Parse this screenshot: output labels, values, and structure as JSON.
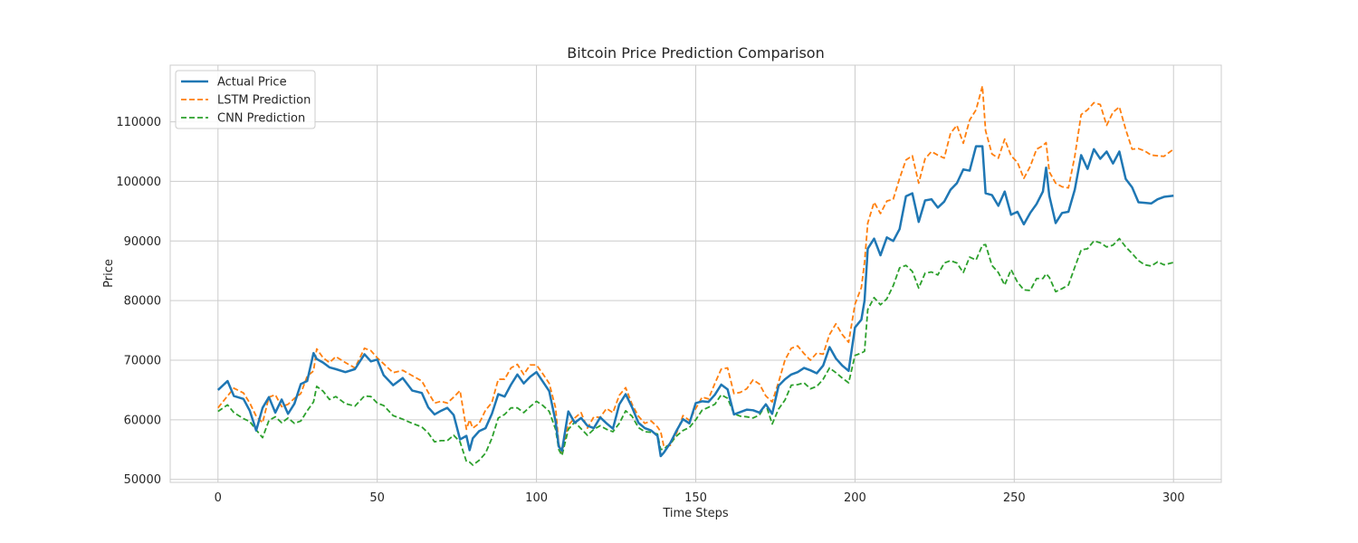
{
  "chart_data": {
    "type": "line",
    "title": "Bitcoin Price Prediction Comparison",
    "xlabel": "Time Steps",
    "ylabel": "Price",
    "xlim": [
      -15,
      315
    ],
    "ylim": [
      49500,
      119500
    ],
    "xticks": [
      0,
      50,
      100,
      150,
      200,
      250,
      300
    ],
    "yticks": [
      50000,
      60000,
      70000,
      80000,
      90000,
      100000,
      110000
    ],
    "grid": true,
    "legend_position": "top-left",
    "series": [
      {
        "name": "Actual Price",
        "color": "#1f77b4",
        "style": "solid",
        "x": [
          0,
          3,
          5,
          8,
          10,
          12,
          14,
          16,
          18,
          20,
          22,
          24,
          26,
          28,
          30,
          31,
          33,
          35,
          37,
          40,
          43,
          46,
          48,
          50,
          52,
          55,
          58,
          61,
          64,
          66,
          68,
          70,
          72,
          74,
          76,
          78,
          79,
          80,
          82,
          84,
          86,
          88,
          90,
          92,
          94,
          96,
          98,
          100,
          102,
          104,
          106,
          107,
          108,
          110,
          112,
          114,
          116,
          118,
          120,
          122,
          124,
          126,
          128,
          130,
          132,
          134,
          136,
          138,
          139,
          140,
          142,
          144,
          146,
          148,
          150,
          152,
          154,
          156,
          158,
          160,
          162,
          164,
          166,
          168,
          170,
          172,
          174,
          176,
          178,
          180,
          182,
          184,
          186,
          188,
          190,
          192,
          194,
          196,
          198,
          200,
          202,
          203,
          204,
          206,
          208,
          210,
          212,
          214,
          216,
          218,
          220,
          222,
          224,
          226,
          228,
          230,
          232,
          234,
          236,
          238,
          240,
          241,
          243,
          245,
          247,
          249,
          251,
          253,
          255,
          257,
          259,
          260,
          261,
          263,
          265,
          267,
          269,
          271,
          273,
          275,
          277,
          279,
          281,
          283,
          285,
          287,
          289,
          291,
          293,
          295,
          297,
          300
        ],
        "y": [
          65000,
          66500,
          64000,
          63500,
          61500,
          58200,
          62000,
          63800,
          61200,
          63400,
          61000,
          62700,
          66000,
          66500,
          71200,
          70200,
          69600,
          68800,
          68500,
          68000,
          68500,
          71000,
          69800,
          70100,
          67500,
          65800,
          67000,
          64900,
          64500,
          62100,
          60900,
          61500,
          62000,
          60800,
          56700,
          57300,
          54900,
          56900,
          58100,
          58600,
          61000,
          64300,
          63900,
          65900,
          67600,
          66100,
          67200,
          68000,
          66400,
          64800,
          59700,
          55500,
          54800,
          61400,
          59500,
          60300,
          59000,
          58600,
          60400,
          59400,
          58500,
          62600,
          64300,
          62100,
          59500,
          58600,
          58200,
          57300,
          53900,
          54500,
          56100,
          58200,
          60100,
          59400,
          62800,
          63100,
          63000,
          64200,
          65900,
          65100,
          60900,
          61300,
          61700,
          61600,
          61200,
          62600,
          61000,
          65700,
          66800,
          67600,
          68000,
          68700,
          68300,
          67800,
          69100,
          72200,
          70300,
          69100,
          68200,
          75500,
          76800,
          80000,
          88700,
          90400,
          87600,
          90600,
          90000,
          92000,
          97500,
          98000,
          93200,
          96800,
          97000,
          95600,
          96600,
          98600,
          99700,
          102000,
          101800,
          105900,
          105900,
          98000,
          97700,
          95900,
          98300,
          94400,
          94900,
          92800,
          94700,
          96200,
          98300,
          102300,
          97600,
          93000,
          94700,
          94900,
          98600,
          104400,
          102100,
          105400,
          103800,
          105000,
          103000,
          105000,
          100400,
          99000,
          96500,
          96400,
          96300,
          97000,
          97400,
          97600
        ]
      },
      {
        "name": "LSTM Prediction",
        "color": "#ff7f0e",
        "style": "dashed",
        "x": [
          0,
          3,
          5,
          8,
          10,
          12,
          14,
          16,
          18,
          20,
          22,
          24,
          26,
          28,
          30,
          31,
          33,
          35,
          37,
          40,
          43,
          46,
          48,
          50,
          52,
          55,
          58,
          61,
          64,
          66,
          68,
          70,
          72,
          74,
          76,
          78,
          79,
          80,
          82,
          84,
          86,
          88,
          90,
          92,
          94,
          96,
          98,
          100,
          102,
          104,
          106,
          107,
          108,
          110,
          112,
          114,
          116,
          118,
          120,
          122,
          124,
          126,
          128,
          130,
          132,
          134,
          136,
          138,
          139,
          140,
          142,
          144,
          146,
          148,
          150,
          152,
          154,
          156,
          158,
          160,
          162,
          164,
          166,
          168,
          170,
          172,
          174,
          176,
          178,
          180,
          182,
          184,
          186,
          188,
          190,
          192,
          194,
          196,
          198,
          200,
          202,
          203,
          204,
          206,
          208,
          210,
          212,
          214,
          216,
          218,
          220,
          222,
          224,
          226,
          228,
          230,
          232,
          234,
          236,
          238,
          240,
          241,
          243,
          245,
          247,
          249,
          251,
          253,
          255,
          257,
          259,
          260,
          261,
          263,
          265,
          267,
          269,
          271,
          273,
          275,
          277,
          279,
          281,
          283,
          285,
          287,
          289,
          291,
          293,
          295,
          297,
          300
        ],
        "y": [
          62000,
          64000,
          65300,
          64500,
          62800,
          60600,
          59500,
          63800,
          64200,
          62200,
          62600,
          63600,
          64400,
          67300,
          68200,
          71900,
          70400,
          69600,
          70600,
          69600,
          68700,
          72000,
          71600,
          70400,
          69400,
          67900,
          68300,
          67400,
          66500,
          64600,
          62800,
          63100,
          62800,
          63800,
          64900,
          58400,
          60000,
          58600,
          59400,
          61600,
          62900,
          66800,
          66800,
          68700,
          69300,
          67600,
          69200,
          69200,
          67700,
          66100,
          62000,
          55900,
          54400,
          59100,
          60300,
          61200,
          58600,
          60500,
          60400,
          61900,
          61200,
          64100,
          65400,
          62600,
          60600,
          59400,
          59800,
          58800,
          58000,
          55500,
          55700,
          57800,
          60700,
          59900,
          61900,
          63800,
          63500,
          66100,
          68500,
          68700,
          64400,
          64600,
          65200,
          66700,
          66000,
          64000,
          63000,
          66300,
          70000,
          72000,
          72400,
          71100,
          70000,
          71200,
          71000,
          74300,
          76100,
          74300,
          73000,
          79400,
          82200,
          86400,
          93000,
          96500,
          94600,
          96700,
          97000,
          100500,
          103600,
          104300,
          99700,
          103800,
          105000,
          104400,
          103900,
          108100,
          109400,
          106400,
          110300,
          112000,
          116000,
          108500,
          104600,
          103900,
          107100,
          104300,
          103200,
          100500,
          102500,
          105400,
          106000,
          106500,
          101600,
          99700,
          99100,
          98900,
          104200,
          111200,
          112000,
          113200,
          112900,
          109400,
          111600,
          112500,
          108700,
          105400,
          105500,
          105100,
          104400,
          104300,
          104200,
          105400
        ]
      },
      {
        "name": "CNN Prediction",
        "color": "#2ca02c",
        "style": "dashed",
        "x": [
          0,
          3,
          5,
          8,
          10,
          12,
          14,
          16,
          18,
          20,
          22,
          24,
          26,
          28,
          30,
          31,
          33,
          35,
          37,
          40,
          43,
          46,
          48,
          50,
          52,
          55,
          58,
          61,
          64,
          66,
          68,
          70,
          72,
          74,
          76,
          78,
          79,
          80,
          82,
          84,
          86,
          88,
          90,
          92,
          94,
          96,
          98,
          100,
          102,
          104,
          106,
          107,
          108,
          110,
          112,
          114,
          116,
          118,
          120,
          122,
          124,
          126,
          128,
          130,
          132,
          134,
          136,
          138,
          139,
          140,
          142,
          144,
          146,
          148,
          150,
          152,
          154,
          156,
          158,
          160,
          162,
          164,
          166,
          168,
          170,
          172,
          174,
          176,
          178,
          180,
          182,
          184,
          186,
          188,
          190,
          192,
          194,
          196,
          198,
          200,
          202,
          203,
          204,
          206,
          208,
          210,
          212,
          214,
          216,
          218,
          220,
          222,
          224,
          226,
          228,
          230,
          232,
          234,
          236,
          238,
          240,
          241,
          243,
          245,
          247,
          249,
          251,
          253,
          255,
          257,
          259,
          260,
          261,
          263,
          265,
          267,
          269,
          271,
          273,
          275,
          277,
          279,
          281,
          283,
          285,
          287,
          289,
          291,
          293,
          295,
          297,
          300
        ],
        "y": [
          61400,
          62500,
          61200,
          60200,
          59700,
          58300,
          57000,
          59900,
          60500,
          59500,
          60300,
          59400,
          59800,
          61500,
          63000,
          65600,
          64800,
          63400,
          63900,
          62700,
          62300,
          64000,
          63900,
          62800,
          62400,
          60700,
          60100,
          59400,
          58800,
          57800,
          56300,
          56500,
          56500,
          57400,
          56300,
          53000,
          52900,
          52400,
          53200,
          54400,
          56900,
          60300,
          60900,
          62000,
          62000,
          61200,
          62200,
          63100,
          62400,
          61400,
          58400,
          55000,
          54000,
          58400,
          59600,
          58500,
          57400,
          58400,
          59000,
          58400,
          58000,
          59400,
          61500,
          60600,
          58700,
          58000,
          57900,
          57600,
          55000,
          55100,
          56000,
          57300,
          58200,
          58700,
          60000,
          61600,
          62100,
          62600,
          64200,
          63600,
          61000,
          60600,
          60500,
          60300,
          60800,
          62600,
          59300,
          61800,
          63300,
          65800,
          65900,
          66200,
          65200,
          65600,
          66800,
          68700,
          67900,
          67000,
          66200,
          70800,
          71200,
          71500,
          78500,
          80500,
          79300,
          80300,
          82500,
          85500,
          85900,
          84900,
          82100,
          84600,
          84800,
          84300,
          86300,
          86700,
          86300,
          84700,
          87300,
          86800,
          89300,
          89400,
          85900,
          84700,
          82600,
          85200,
          83100,
          81800,
          81700,
          83700,
          83700,
          84500,
          83900,
          81500,
          82000,
          82600,
          85600,
          88500,
          88700,
          90000,
          89700,
          89000,
          89300,
          90400,
          89000,
          87900,
          86700,
          86000,
          85800,
          86500,
          86000,
          86400
        ]
      }
    ]
  }
}
